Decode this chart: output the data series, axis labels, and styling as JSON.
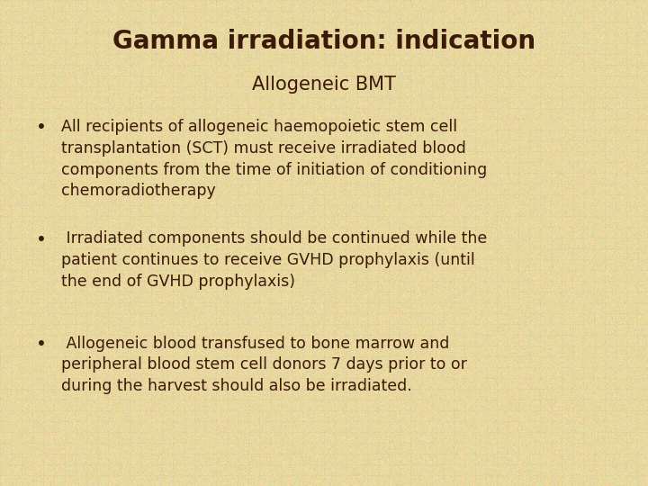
{
  "title": "Gamma irradiation: indication",
  "subtitle": "Allogeneic BMT",
  "bullet1": "All recipients of allogeneic haemopoietic stem cell\ntransplantation (SCT) must receive irradiated blood\ncomponents from the time of initiation of conditioning\nchemoradiotherapy",
  "bullet2": " Irradiated components should be continued while the\npatient continues to receive GVHD prophylaxis (until\nthe end of GVHD prophylaxis)",
  "bullet3": " Allogeneic blood transfused to bone marrow and\nperipheral blood stem cell donors 7 days prior to or\nduring the harvest should also be irradiated.",
  "bg_color": "#e8d8a0",
  "text_color": "#3b1a08",
  "title_fontsize": 20,
  "subtitle_fontsize": 15,
  "body_fontsize": 12.5
}
